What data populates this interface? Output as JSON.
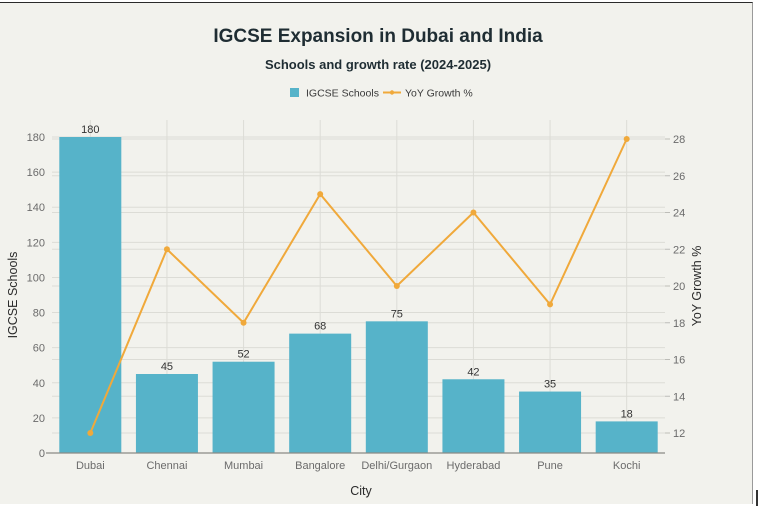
{
  "chart_data": {
    "type": "bar",
    "title": "IGCSE Expansion in Dubai and India",
    "subtitle": "Schools and growth rate (2024-2025)",
    "xlabel": "City",
    "ylabel": "IGCSE Schools",
    "y2label": "YoY Growth %",
    "categories": [
      "Dubai",
      "Chennai",
      "Mumbai",
      "Bangalore",
      "Delhi/Gurgaon",
      "Hyderabad",
      "Pune",
      "Kochi"
    ],
    "series": [
      {
        "name": "IGCSE Schools",
        "type": "bar",
        "axis": "left",
        "color": "#56b3c9",
        "values": [
          180,
          45,
          52,
          68,
          75,
          42,
          35,
          18
        ],
        "show_labels": true
      },
      {
        "name": "YoY Growth %",
        "type": "line",
        "axis": "right",
        "color": "#f0a93b",
        "values": [
          12,
          22,
          18,
          25,
          20,
          24,
          19,
          28
        ]
      }
    ],
    "ylim": [
      0,
      180
    ],
    "yticks": [
      0,
      20,
      40,
      60,
      80,
      100,
      120,
      140,
      160,
      180
    ],
    "y2lim": [
      11,
      28.7
    ],
    "y2ticks": [
      12,
      14,
      16,
      18,
      20,
      22,
      24,
      26,
      28
    ],
    "grid": true,
    "legend": "top-center",
    "legend_entries": [
      "IGCSE Schools",
      "YoY Growth %"
    ]
  }
}
